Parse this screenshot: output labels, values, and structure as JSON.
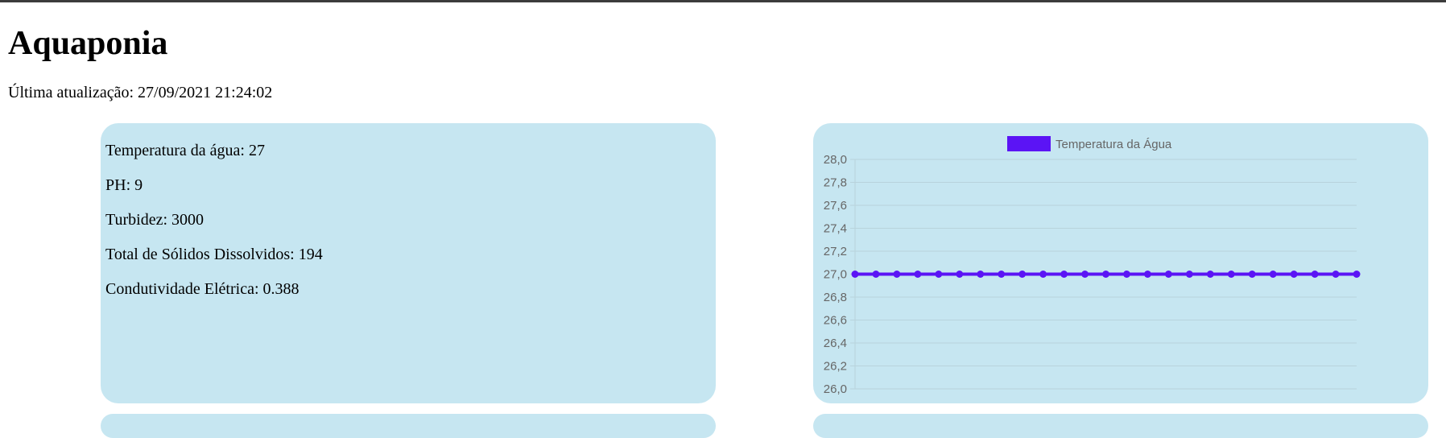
{
  "page": {
    "title": "Aquaponia",
    "last_update_label": "Última atualização:",
    "last_update_value": "27/09/2021 21:24:02",
    "last_update_text": "Última atualização: 27/09/2021 21:24:02"
  },
  "readings": [
    {
      "label": "Temperatura da água",
      "value": "27",
      "text": "Temperatura da água: 27"
    },
    {
      "label": "PH",
      "value": "9",
      "text": "PH: 9"
    },
    {
      "label": "Turbidez",
      "value": "3000",
      "text": "Turbidez: 3000"
    },
    {
      "label": "Total de Sólidos Dissolvidos",
      "value": "194",
      "text": "Total de Sólidos Dissolvidos: 194"
    },
    {
      "label": "Condutividade Elétrica",
      "value": "0.388",
      "text": "Condutividade Elétrica: 0.388"
    }
  ],
  "colors": {
    "panel_background": "#c6e6f1",
    "series_line": "#5b14f5",
    "grid": "#b8d3dc",
    "text_muted": "#666666"
  },
  "chart_data": {
    "type": "line",
    "title": "",
    "xlabel": "",
    "ylabel": "",
    "ylim": [
      26.0,
      28.0
    ],
    "y_ticks": [
      "28,0",
      "27,8",
      "27,6",
      "27,4",
      "27,2",
      "27,0",
      "26,8",
      "26,6",
      "26,4",
      "26,2",
      "26,0"
    ],
    "y_tick_values": [
      28.0,
      27.8,
      27.6,
      27.4,
      27.2,
      27.0,
      26.8,
      26.6,
      26.4,
      26.2,
      26.0
    ],
    "grid": true,
    "legend_position": "top-center",
    "series": [
      {
        "name": "Temperatura da Água",
        "color": "#5b14f5",
        "values": [
          27,
          27,
          27,
          27,
          27,
          27,
          27,
          27,
          27,
          27,
          27,
          27,
          27,
          27,
          27,
          27,
          27,
          27,
          27,
          27,
          27,
          27,
          27,
          27,
          27
        ]
      }
    ]
  }
}
